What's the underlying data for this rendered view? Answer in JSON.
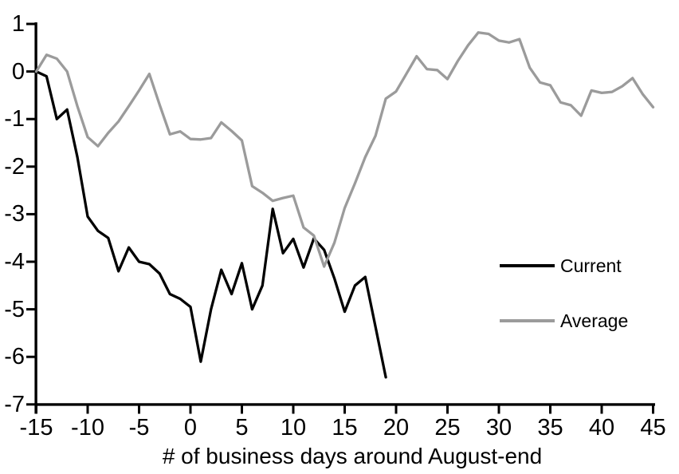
{
  "chart_data": {
    "type": "line",
    "title": "",
    "xlabel": "# of business days around August-end",
    "ylabel": "",
    "xlim": [
      -15,
      45
    ],
    "ylim": [
      -7,
      1
    ],
    "x_ticks": [
      -15,
      -10,
      -5,
      0,
      5,
      10,
      15,
      20,
      25,
      30,
      35,
      40,
      45
    ],
    "y_ticks": [
      1,
      0,
      -1,
      -2,
      -3,
      -4,
      -5,
      -6,
      -7
    ],
    "grid": false,
    "legend_position": "right-middle",
    "axis_color": "#000000",
    "series": [
      {
        "name": "Current",
        "color": "#000000",
        "x": [
          -15,
          -14,
          -13,
          -12,
          -11,
          -10,
          -9,
          -8,
          -7,
          -6,
          -5,
          -4,
          -3,
          -2,
          -1,
          0,
          1,
          2,
          3,
          4,
          5,
          6,
          7,
          8,
          9,
          10,
          11,
          12,
          13,
          14,
          15,
          16,
          17,
          18,
          19
        ],
        "values": [
          0,
          -0.1,
          -1.0,
          -0.8,
          -1.8,
          -3.05,
          -3.35,
          -3.5,
          -4.2,
          -3.7,
          -4.0,
          -4.05,
          -4.25,
          -4.68,
          -4.78,
          -4.95,
          -6.1,
          -5.0,
          -4.17,
          -4.68,
          -4.03,
          -5.0,
          -4.5,
          -2.89,
          -3.82,
          -3.52,
          -4.12,
          -3.51,
          -3.75,
          -4.35,
          -5.05,
          -4.5,
          -4.32,
          -5.37,
          -6.43
        ]
      },
      {
        "name": "Average",
        "color": "#9b9b9b",
        "x": [
          -15,
          -14,
          -13,
          -12,
          -11,
          -10,
          -9,
          -8,
          -7,
          -6,
          -5,
          -4,
          -3,
          -2,
          -1,
          0,
          1,
          2,
          3,
          4,
          5,
          6,
          7,
          8,
          9,
          10,
          11,
          12,
          13,
          14,
          15,
          16,
          17,
          18,
          19,
          20,
          21,
          22,
          23,
          24,
          25,
          26,
          27,
          28,
          29,
          30,
          31,
          32,
          33,
          34,
          35,
          36,
          37,
          38,
          39,
          40,
          41,
          42,
          43,
          44,
          45
        ],
        "values": [
          0,
          0.35,
          0.27,
          0,
          -0.73,
          -1.38,
          -1.57,
          -1.29,
          -1.05,
          -0.73,
          -0.4,
          -0.05,
          -0.7,
          -1.32,
          -1.26,
          -1.42,
          -1.43,
          -1.4,
          -1.07,
          -1.25,
          -1.45,
          -2.41,
          -2.55,
          -2.72,
          -2.66,
          -2.61,
          -3.28,
          -3.45,
          -4.1,
          -3.6,
          -2.87,
          -2.35,
          -1.8,
          -1.35,
          -0.57,
          -0.42,
          -0.05,
          0.32,
          0.05,
          0.03,
          -0.16,
          0.22,
          0.55,
          0.82,
          0.79,
          0.65,
          0.61,
          0.68,
          0.08,
          -0.23,
          -0.29,
          -0.65,
          -0.71,
          -0.93,
          -0.4,
          -0.45,
          -0.43,
          -0.31,
          -0.14,
          -0.48,
          -0.75
        ]
      }
    ]
  },
  "legend": {
    "current_label": "Current",
    "average_label": "Average"
  }
}
